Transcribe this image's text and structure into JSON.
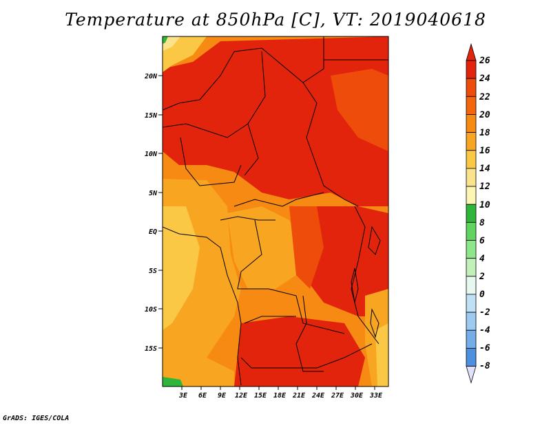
{
  "title": "Temperature at 850hPa [C], VT: 2019040618",
  "credit": "GrADS: IGES/COLA",
  "chart_data": {
    "type": "heatmap",
    "title": "Temperature at 850hPa [C], VT: 2019040618",
    "variable": "Temperature at 850hPa",
    "units": "C",
    "valid_time": "2019040618",
    "lon_range": [
      0,
      35
    ],
    "lat_range": [
      -20,
      25
    ],
    "x_ticks": [
      "3E",
      "6E",
      "9E",
      "12E",
      "15E",
      "18E",
      "21E",
      "24E",
      "27E",
      "30E",
      "33E"
    ],
    "y_ticks": [
      "20N",
      "15N",
      "10N",
      "5N",
      "EQ",
      "5S",
      "10S",
      "15S"
    ],
    "colorbar_levels": [
      "26",
      "24",
      "22",
      "20",
      "18",
      "16",
      "14",
      "12",
      "10",
      "8",
      "6",
      "4",
      "2",
      "0",
      "-2",
      "-4",
      "-6",
      "-8"
    ],
    "colorbar_colors": [
      "#e3240d",
      "#ee4c0a",
      "#f4650c",
      "#f68a12",
      "#f8a521",
      "#fbc846",
      "#fbe38c",
      "#fdf5b3",
      "#2fb53a",
      "#5fd45e",
      "#8ee68a",
      "#c1f0b8",
      "#e6f8f0",
      "#bfe0f5",
      "#9ccaf0",
      "#74aee8",
      "#4d90e0",
      "#2f6fd2",
      "#1d55c2",
      "#1140a8",
      "#0a2b88"
    ],
    "colorbar_top_color": "#e3240d",
    "colorbar_bottom_color": "#e0e2fb",
    "grid": false
  }
}
